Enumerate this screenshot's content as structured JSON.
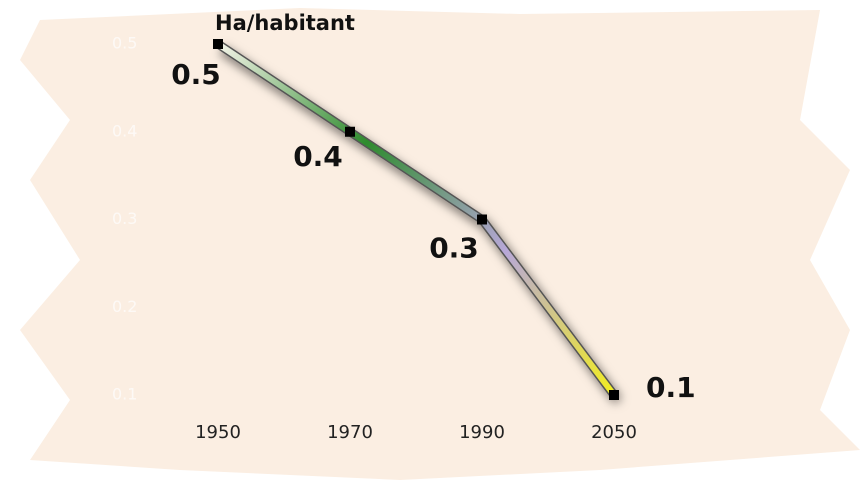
{
  "chart_data": {
    "type": "line",
    "title": "Ha/habitant",
    "categories": [
      "1950",
      "1970",
      "1990",
      "2050"
    ],
    "values": [
      0.5,
      0.4,
      0.3,
      0.1
    ],
    "ylim": [
      0.1,
      0.5
    ],
    "yticks": [
      0.1,
      0.2,
      0.3,
      0.4,
      0.5
    ],
    "colors": [
      "#f4f4e8",
      "#2e8b2e",
      "#b8a8d8",
      "#f2ee20"
    ]
  }
}
